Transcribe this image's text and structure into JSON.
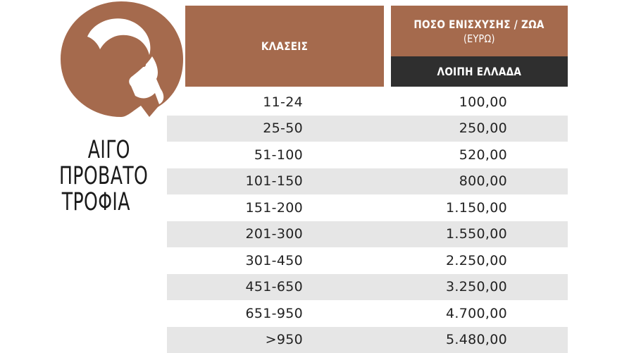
{
  "side_title": {
    "line1": "ΑΙΓΟ",
    "line2": "ΠΡΟΒΑΤΟ",
    "line3": "ΤΡΟΦΙΑ"
  },
  "logo": {
    "icon": "goat-head-icon",
    "color": "#a56a4d"
  },
  "table": {
    "col_classes_header": "ΚΛΑΣΕΙΣ",
    "col_amount_header": "ΠΟΣΟ ΕΝΙΣΧΥΣΗΣ / ΖΩΑ",
    "col_amount_subheader": "(ΕΥΡΩ)",
    "region_header": "ΛΟΙΠΗ ΕΛΛΑΔΑ",
    "rows": [
      {
        "class": "11-24",
        "amount": "100,00"
      },
      {
        "class": "25-50",
        "amount": "250,00"
      },
      {
        "class": "51-100",
        "amount": "520,00"
      },
      {
        "class": "101-150",
        "amount": "800,00"
      },
      {
        "class": "151-200",
        "amount": "1.150,00"
      },
      {
        "class": "201-300",
        "amount": "1.550,00"
      },
      {
        "class": "301-450",
        "amount": "2.250,00"
      },
      {
        "class": "451-650",
        "amount": "3.250,00"
      },
      {
        "class": "651-950",
        "amount": "4.700,00"
      },
      {
        "class": ">950",
        "amount": "5.480,00"
      }
    ]
  },
  "colors": {
    "header_brown": "#a56a4d",
    "header_dark": "#2f2f2f",
    "row_alt": "#e6e6e6"
  }
}
